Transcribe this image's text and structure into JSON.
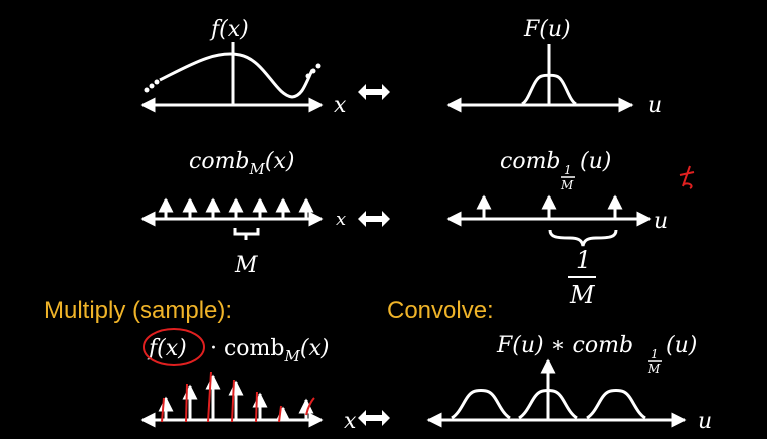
{
  "colors": {
    "background": "#000000",
    "foreground": "#ffffff",
    "accent": "#f0b429",
    "ink": "#e02020"
  },
  "row1": {
    "left_label": "f(x)",
    "left_axis": "x",
    "right_label": "F(u)",
    "right_axis": "u"
  },
  "row2": {
    "left_label_base": "comb",
    "left_label_sub": "M",
    "left_label_arg": "(x)",
    "left_axis": "x",
    "spacing_label": "M",
    "right_label_base": "comb",
    "right_frac_num": "1",
    "right_frac_den": "M",
    "right_label_arg": "(u)",
    "right_axis": "u",
    "right_spacing_num": "1",
    "right_spacing_den": "M"
  },
  "row3": {
    "multiply_label": "Multiply (sample):",
    "convolve_label": "Convolve:",
    "left_expr_f": "f(x)",
    "left_expr_rest": "· comb",
    "left_expr_sub": "M",
    "left_expr_arg": "(x)",
    "left_axis": "x",
    "right_expr_f": "F(u) ∗ comb",
    "right_frac_num": "1",
    "right_frac_den": "M",
    "right_expr_arg": "(u)",
    "right_axis": "u"
  },
  "icons": [
    "double-arrow-icon",
    "star-annotation-icon"
  ]
}
